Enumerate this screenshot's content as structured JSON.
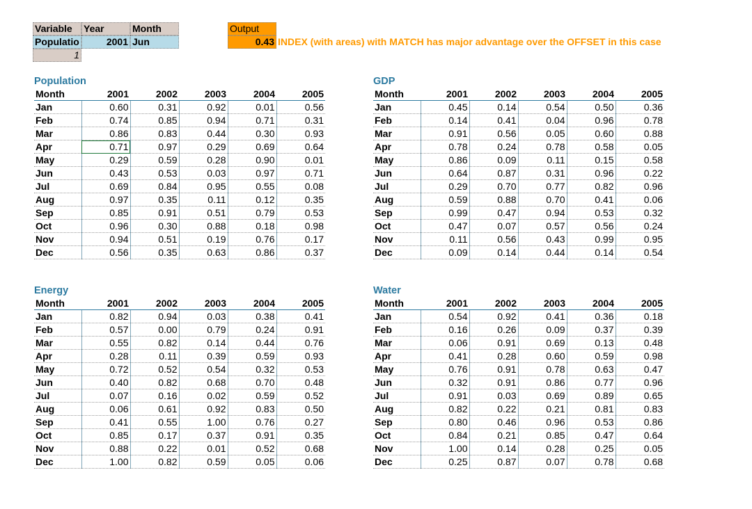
{
  "selector": {
    "headers": {
      "variable": "Variable",
      "year": "Year",
      "month": "Month",
      "output": "Output"
    },
    "inputs": {
      "variable": "Populatio",
      "year": "2001",
      "month": "Jun",
      "index": "1"
    },
    "output_value": "0.43",
    "note": "INDEX (with areas) with MATCH has major advantage over the OFFSET in this case"
  },
  "colors": {
    "accent_blue": "#2c7aa0",
    "input_blue": "#b7dbe8",
    "header_tan": "#d9cdc6",
    "output_orange": "#ff9a00"
  },
  "tables": [
    {
      "title": "Population",
      "month_header": "Month",
      "years": [
        "2001",
        "2002",
        "2003",
        "2004",
        "2005"
      ],
      "rows": [
        {
          "month": "Jan",
          "values": [
            "0.60",
            "0.31",
            "0.92",
            "0.01",
            "0.56"
          ]
        },
        {
          "month": "Feb",
          "values": [
            "0.74",
            "0.85",
            "0.94",
            "0.71",
            "0.31"
          ]
        },
        {
          "month": "Mar",
          "values": [
            "0.86",
            "0.83",
            "0.44",
            "0.30",
            "0.93"
          ]
        },
        {
          "month": "Apr",
          "values": [
            "0.71",
            "0.97",
            "0.29",
            "0.69",
            "0.64"
          ]
        },
        {
          "month": "May",
          "values": [
            "0.29",
            "0.59",
            "0.28",
            "0.90",
            "0.01"
          ]
        },
        {
          "month": "Jun",
          "values": [
            "0.43",
            "0.53",
            "0.03",
            "0.97",
            "0.71"
          ]
        },
        {
          "month": "Jul",
          "values": [
            "0.69",
            "0.84",
            "0.95",
            "0.55",
            "0.08"
          ]
        },
        {
          "month": "Aug",
          "values": [
            "0.97",
            "0.35",
            "0.11",
            "0.12",
            "0.35"
          ]
        },
        {
          "month": "Sep",
          "values": [
            "0.85",
            "0.91",
            "0.51",
            "0.79",
            "0.53"
          ]
        },
        {
          "month": "Oct",
          "values": [
            "0.96",
            "0.30",
            "0.88",
            "0.18",
            "0.98"
          ]
        },
        {
          "month": "Nov",
          "values": [
            "0.94",
            "0.51",
            "0.19",
            "0.76",
            "0.17"
          ]
        },
        {
          "month": "Dec",
          "values": [
            "0.56",
            "0.35",
            "0.63",
            "0.86",
            "0.37"
          ]
        }
      ]
    },
    {
      "title": "GDP",
      "month_header": "Month",
      "years": [
        "2001",
        "2002",
        "2003",
        "2004",
        "2005"
      ],
      "rows": [
        {
          "month": "Jan",
          "values": [
            "0.45",
            "0.14",
            "0.54",
            "0.50",
            "0.36"
          ]
        },
        {
          "month": "Feb",
          "values": [
            "0.14",
            "0.41",
            "0.04",
            "0.96",
            "0.78"
          ]
        },
        {
          "month": "Mar",
          "values": [
            "0.91",
            "0.56",
            "0.05",
            "0.60",
            "0.88"
          ]
        },
        {
          "month": "Apr",
          "values": [
            "0.78",
            "0.24",
            "0.78",
            "0.58",
            "0.05"
          ]
        },
        {
          "month": "May",
          "values": [
            "0.86",
            "0.09",
            "0.11",
            "0.15",
            "0.58"
          ]
        },
        {
          "month": "Jun",
          "values": [
            "0.64",
            "0.87",
            "0.31",
            "0.96",
            "0.22"
          ]
        },
        {
          "month": "Jul",
          "values": [
            "0.29",
            "0.70",
            "0.77",
            "0.82",
            "0.96"
          ]
        },
        {
          "month": "Aug",
          "values": [
            "0.59",
            "0.88",
            "0.70",
            "0.41",
            "0.06"
          ]
        },
        {
          "month": "Sep",
          "values": [
            "0.99",
            "0.47",
            "0.94",
            "0.53",
            "0.32"
          ]
        },
        {
          "month": "Oct",
          "values": [
            "0.47",
            "0.07",
            "0.57",
            "0.56",
            "0.24"
          ]
        },
        {
          "month": "Nov",
          "values": [
            "0.11",
            "0.56",
            "0.43",
            "0.99",
            "0.95"
          ]
        },
        {
          "month": "Dec",
          "values": [
            "0.09",
            "0.14",
            "0.44",
            "0.14",
            "0.54"
          ]
        }
      ]
    },
    {
      "title": "Energy",
      "month_header": "Month",
      "years": [
        "2001",
        "2002",
        "2003",
        "2004",
        "2005"
      ],
      "rows": [
        {
          "month": "Jan",
          "values": [
            "0.82",
            "0.94",
            "0.03",
            "0.38",
            "0.41"
          ]
        },
        {
          "month": "Feb",
          "values": [
            "0.57",
            "0.00",
            "0.79",
            "0.24",
            "0.91"
          ]
        },
        {
          "month": "Mar",
          "values": [
            "0.55",
            "0.82",
            "0.14",
            "0.44",
            "0.76"
          ]
        },
        {
          "month": "Apr",
          "values": [
            "0.28",
            "0.11",
            "0.39",
            "0.59",
            "0.93"
          ]
        },
        {
          "month": "May",
          "values": [
            "0.72",
            "0.52",
            "0.54",
            "0.32",
            "0.53"
          ]
        },
        {
          "month": "Jun",
          "values": [
            "0.40",
            "0.82",
            "0.68",
            "0.70",
            "0.48"
          ]
        },
        {
          "month": "Jul",
          "values": [
            "0.07",
            "0.16",
            "0.02",
            "0.59",
            "0.52"
          ]
        },
        {
          "month": "Aug",
          "values": [
            "0.06",
            "0.61",
            "0.92",
            "0.83",
            "0.50"
          ]
        },
        {
          "month": "Sep",
          "values": [
            "0.41",
            "0.55",
            "1.00",
            "0.76",
            "0.27"
          ]
        },
        {
          "month": "Oct",
          "values": [
            "0.85",
            "0.17",
            "0.37",
            "0.91",
            "0.35"
          ]
        },
        {
          "month": "Nov",
          "values": [
            "0.88",
            "0.22",
            "0.01",
            "0.52",
            "0.68"
          ]
        },
        {
          "month": "Dec",
          "values": [
            "1.00",
            "0.82",
            "0.59",
            "0.05",
            "0.06"
          ]
        }
      ]
    },
    {
      "title": "Water",
      "month_header": "Month",
      "years": [
        "2001",
        "2002",
        "2003",
        "2004",
        "2005"
      ],
      "rows": [
        {
          "month": "Jan",
          "values": [
            "0.54",
            "0.92",
            "0.41",
            "0.36",
            "0.18"
          ]
        },
        {
          "month": "Feb",
          "values": [
            "0.16",
            "0.26",
            "0.09",
            "0.37",
            "0.39"
          ]
        },
        {
          "month": "Mar",
          "values": [
            "0.06",
            "0.91",
            "0.69",
            "0.13",
            "0.48"
          ]
        },
        {
          "month": "Apr",
          "values": [
            "0.41",
            "0.28",
            "0.60",
            "0.59",
            "0.98"
          ]
        },
        {
          "month": "May",
          "values": [
            "0.76",
            "0.91",
            "0.78",
            "0.63",
            "0.47"
          ]
        },
        {
          "month": "Jun",
          "values": [
            "0.32",
            "0.91",
            "0.86",
            "0.77",
            "0.96"
          ]
        },
        {
          "month": "Jul",
          "values": [
            "0.91",
            "0.03",
            "0.69",
            "0.89",
            "0.65"
          ]
        },
        {
          "month": "Aug",
          "values": [
            "0.82",
            "0.22",
            "0.21",
            "0.81",
            "0.83"
          ]
        },
        {
          "month": "Sep",
          "values": [
            "0.80",
            "0.46",
            "0.96",
            "0.53",
            "0.86"
          ]
        },
        {
          "month": "Oct",
          "values": [
            "0.84",
            "0.21",
            "0.85",
            "0.47",
            "0.64"
          ]
        },
        {
          "month": "Nov",
          "values": [
            "1.00",
            "0.14",
            "0.28",
            "0.25",
            "0.05"
          ]
        },
        {
          "month": "Dec",
          "values": [
            "0.25",
            "0.87",
            "0.07",
            "0.78",
            "0.68"
          ]
        }
      ]
    }
  ]
}
